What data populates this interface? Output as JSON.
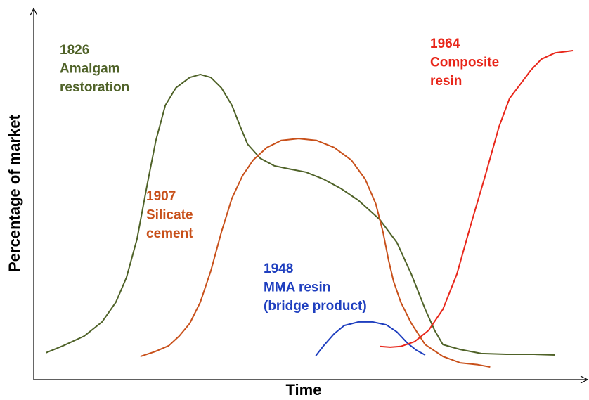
{
  "chart_data": {
    "type": "line",
    "xlabel": "Time",
    "ylabel": "Percentage of market",
    "xlim": [
      0,
      100
    ],
    "ylim": [
      0,
      100
    ],
    "series": [
      {
        "label": [
          "1826",
          "Amalgam",
          "restoration"
        ],
        "color": "#4f6228",
        "x": [
          2.2,
          5.3,
          9.1,
          12.3,
          14.8,
          16.7,
          18.6,
          20.5,
          22.0,
          23.7,
          25.6,
          28.1,
          30.0,
          31.9,
          33.8,
          35.7,
          37.2,
          38.5,
          40.8,
          43.3,
          45.8,
          49.0,
          52.2,
          55.3,
          58.5,
          62.3,
          65.4,
          68.0,
          70.5,
          72.2,
          73.7,
          76.8,
          80.6,
          85.1,
          90.1,
          93.9
        ],
        "values": [
          7.2,
          9.1,
          11.7,
          15.5,
          20.8,
          27.4,
          37.7,
          52.8,
          64.2,
          73.6,
          78.3,
          81.1,
          81.9,
          81.1,
          78.3,
          73.6,
          67.9,
          63.2,
          59.4,
          57.4,
          56.6,
          55.7,
          53.8,
          51.3,
          48.1,
          43.0,
          36.8,
          28.3,
          18.9,
          13.2,
          9.4,
          8.1,
          7.0,
          6.8,
          6.8,
          6.6
        ]
      },
      {
        "label": [
          "1907",
          "Silicate",
          "cement"
        ],
        "color": "#c8501a",
        "x": [
          19.2,
          21.8,
          24.3,
          26.2,
          28.1,
          30.0,
          31.9,
          33.8,
          35.7,
          37.6,
          39.5,
          42.0,
          44.6,
          47.7,
          50.9,
          54.1,
          57.2,
          59.7,
          61.6,
          62.9,
          63.9,
          64.8,
          66.1,
          68.0,
          70.5,
          73.7,
          76.8,
          80.0,
          82.2
        ],
        "values": [
          6.2,
          7.5,
          9.1,
          11.7,
          15.1,
          20.8,
          29.2,
          39.6,
          48.7,
          54.7,
          58.9,
          62.3,
          64.2,
          64.7,
          64.2,
          62.3,
          58.9,
          53.8,
          47.2,
          39.6,
          32.1,
          26.4,
          20.8,
          15.1,
          9.4,
          6.2,
          4.5,
          4.0,
          3.4
        ]
      },
      {
        "label": [
          "1948",
          "MMA resin",
          "(bridge product)"
        ],
        "color": "#1f3fbf",
        "x": [
          50.8,
          52.2,
          54.1,
          55.9,
          58.5,
          61.0,
          63.5,
          65.4,
          67.3,
          68.9,
          70.5
        ],
        "values": [
          6.4,
          9.1,
          12.3,
          14.5,
          15.5,
          15.5,
          14.7,
          12.8,
          9.8,
          7.9,
          6.6
        ]
      },
      {
        "label": [
          "1964",
          "Composite",
          "resin"
        ],
        "color": "#e8261a",
        "x": [
          62.3,
          64.2,
          66.1,
          68.6,
          71.1,
          73.7,
          76.2,
          78.7,
          81.3,
          83.8,
          85.7,
          87.6,
          89.5,
          91.4,
          93.9,
          97.1
        ],
        "values": [
          8.9,
          8.7,
          8.9,
          10.2,
          13.2,
          18.9,
          28.3,
          41.5,
          54.7,
          67.9,
          75.5,
          79.2,
          83.0,
          86.0,
          87.7,
          88.3
        ]
      }
    ]
  }
}
